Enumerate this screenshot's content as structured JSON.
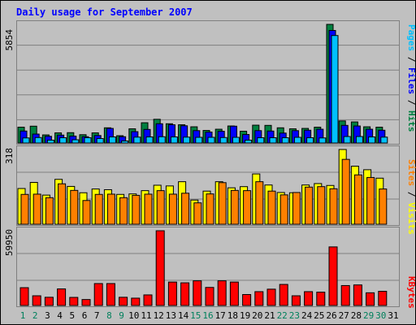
{
  "chart_data": [
    {
      "type": "bar",
      "title": "Daily usage for September 2007",
      "ymax_label": "5854",
      "right_label": {
        "parts": [
          "Pages",
          "Files",
          "Hits"
        ],
        "separator": "/"
      },
      "categories": [
        "1",
        "2",
        "3",
        "4",
        "5",
        "6",
        "7",
        "8",
        "9",
        "10",
        "11",
        "12",
        "13",
        "14",
        "15",
        "16",
        "17",
        "18",
        "19",
        "20",
        "21",
        "22",
        "23",
        "24",
        "25",
        "26",
        "27",
        "28",
        "29",
        "30"
      ],
      "series": [
        {
          "name": "Hits",
          "color": "#008040",
          "values": [
            780,
            830,
            400,
            500,
            510,
            410,
            500,
            750,
            360,
            700,
            1000,
            1170,
            950,
            900,
            800,
            620,
            680,
            840,
            580,
            880,
            870,
            750,
            700,
            720,
            780,
            5854,
            1090,
            1040,
            800,
            780
          ]
        },
        {
          "name": "Files",
          "color": "#0000ff",
          "values": [
            590,
            440,
            330,
            390,
            340,
            310,
            370,
            720,
            310,
            560,
            670,
            950,
            900,
            850,
            610,
            540,
            580,
            830,
            420,
            610,
            590,
            490,
            610,
            630,
            680,
            5554,
            870,
            840,
            680,
            630
          ]
        },
        {
          "name": "Pages",
          "color": "#00c0ff",
          "values": [
            250,
            270,
            140,
            260,
            160,
            260,
            220,
            300,
            100,
            290,
            300,
            310,
            300,
            290,
            280,
            280,
            270,
            280,
            140,
            260,
            260,
            260,
            280,
            260,
            250,
            5304,
            320,
            320,
            300,
            290
          ]
        }
      ],
      "ylim": [
        0,
        5854
      ]
    },
    {
      "type": "bar",
      "ymax_label": "318",
      "right_label": {
        "parts": [
          "Sites",
          "Visits"
        ],
        "separator": "/"
      },
      "categories": [
        "1",
        "2",
        "3",
        "4",
        "5",
        "6",
        "7",
        "8",
        "9",
        "10",
        "11",
        "12",
        "13",
        "14",
        "15",
        "16",
        "17",
        "18",
        "19",
        "20",
        "21",
        "22",
        "23",
        "24",
        "25",
        "26",
        "27",
        "28",
        "29",
        "30"
      ],
      "series": [
        {
          "name": "Visits",
          "color": "#ffff00",
          "values": [
            152,
            178,
            124,
            191,
            161,
            134,
            150,
            147,
            127,
            129,
            143,
            166,
            163,
            181,
            103,
            141,
            181,
            155,
            160,
            214,
            167,
            135,
            134,
            167,
            173,
            165,
            318,
            247,
            232,
            196
          ]
        },
        {
          "name": "Sites",
          "color": "#ff8000",
          "values": [
            127,
            128,
            113,
            172,
            144,
            101,
            127,
            128,
            113,
            123,
            128,
            143,
            128,
            132,
            91,
            129,
            177,
            144,
            143,
            181,
            141,
            125,
            135,
            158,
            160,
            151,
            276,
            210,
            199,
            150
          ]
        }
      ],
      "ylim": [
        0,
        318
      ]
    },
    {
      "type": "bar",
      "ymax_label": "59950",
      "right_label": {
        "parts": [
          "KBytes"
        ]
      },
      "categories": [
        "1",
        "2",
        "3",
        "4",
        "5",
        "6",
        "7",
        "8",
        "9",
        "10",
        "11",
        "12",
        "13",
        "14",
        "15",
        "16",
        "17",
        "18",
        "19",
        "20",
        "21",
        "22",
        "23",
        "24",
        "25",
        "26",
        "27",
        "28",
        "29",
        "30"
      ],
      "series": [
        {
          "name": "KBytes",
          "color": "#ff0000",
          "values": [
            14300,
            7800,
            6600,
            13300,
            6500,
            4800,
            17600,
            17600,
            6600,
            5900,
            8500,
            59950,
            18800,
            18200,
            19800,
            14500,
            19800,
            18800,
            8800,
            11100,
            13100,
            16900,
            7800,
            11100,
            10700,
            47000,
            16000,
            16500,
            10200,
            11400
          ]
        }
      ],
      "ylim": [
        0,
        59950
      ]
    }
  ],
  "x_axis": {
    "labels": [
      "1",
      "2",
      "3",
      "4",
      "5",
      "6",
      "7",
      "8",
      "9",
      "10",
      "11",
      "12",
      "13",
      "14",
      "15",
      "16",
      "17",
      "18",
      "19",
      "20",
      "21",
      "22",
      "23",
      "24",
      "25",
      "26",
      "27",
      "28",
      "29",
      "30",
      "31"
    ],
    "weekend_days": [
      "1",
      "2",
      "8",
      "9",
      "15",
      "16",
      "22",
      "23",
      "29",
      "30"
    ],
    "weekend_color": "#00805c",
    "weekday_color": "#000000"
  },
  "colors": {
    "background": "#c0c0c0",
    "title": "#0000ff",
    "plot_grid": "#7f7f7f",
    "label": "#000000"
  }
}
